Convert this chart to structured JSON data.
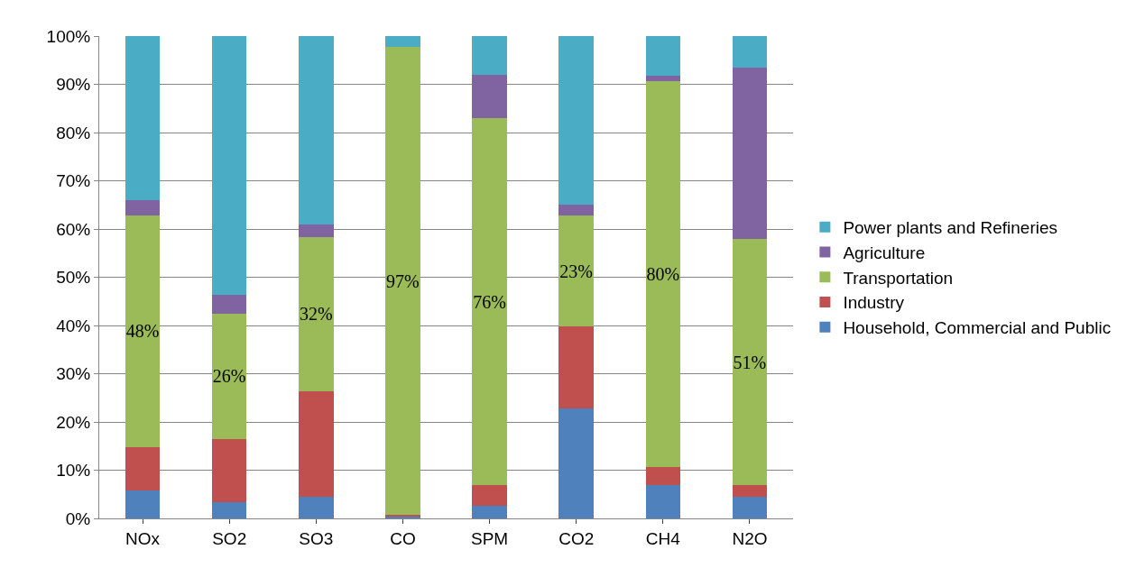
{
  "chart_data": {
    "type": "bar",
    "stacked": true,
    "categories": [
      "NOx",
      "SO2",
      "SO3",
      "CO",
      "SPM",
      "CO2",
      "CH4",
      "N2O"
    ],
    "series": [
      {
        "name": "Household, Commercial and Public",
        "color": "#4f81bd",
        "values": [
          5.8,
          3.4,
          4.5,
          0.4,
          2.7,
          22.8,
          6.9,
          4.4
        ]
      },
      {
        "name": "Industry",
        "color": "#c0504d",
        "values": [
          9.0,
          13.1,
          21.9,
          0.3,
          4.2,
          17,
          3.7,
          2.5
        ]
      },
      {
        "name": "Transportation",
        "color": "#9bbb59",
        "values": [
          48,
          26,
          32,
          97,
          76,
          23,
          80,
          51
        ],
        "value_labels": [
          "48%",
          "26%",
          "32%",
          "97%",
          "76%",
          "23%",
          "80%",
          "51%"
        ]
      },
      {
        "name": "Agriculture",
        "color": "#8064a2",
        "values": [
          3.1,
          3.9,
          2.5,
          0,
          9,
          2.2,
          1.1,
          35.5
        ]
      },
      {
        "name": "Power plants and Refineries",
        "color": "#4bacc6",
        "values": [
          34.1,
          53.6,
          39.1,
          2.3,
          8.1,
          35,
          8.3,
          6.6
        ]
      }
    ],
    "ylim": [
      0,
      100
    ],
    "yticks": [
      {
        "value": 0,
        "label": "0%"
      },
      {
        "value": 10,
        "label": "10%"
      },
      {
        "value": 20,
        "label": "20%"
      },
      {
        "value": 30,
        "label": "30%"
      },
      {
        "value": 40,
        "label": "40%"
      },
      {
        "value": 50,
        "label": "50%"
      },
      {
        "value": 60,
        "label": "60%"
      },
      {
        "value": 70,
        "label": "70%"
      },
      {
        "value": 80,
        "label": "80%"
      },
      {
        "value": 90,
        "label": "90%"
      },
      {
        "value": 100,
        "label": "100%"
      }
    ],
    "grid": "y",
    "legend": "right"
  }
}
